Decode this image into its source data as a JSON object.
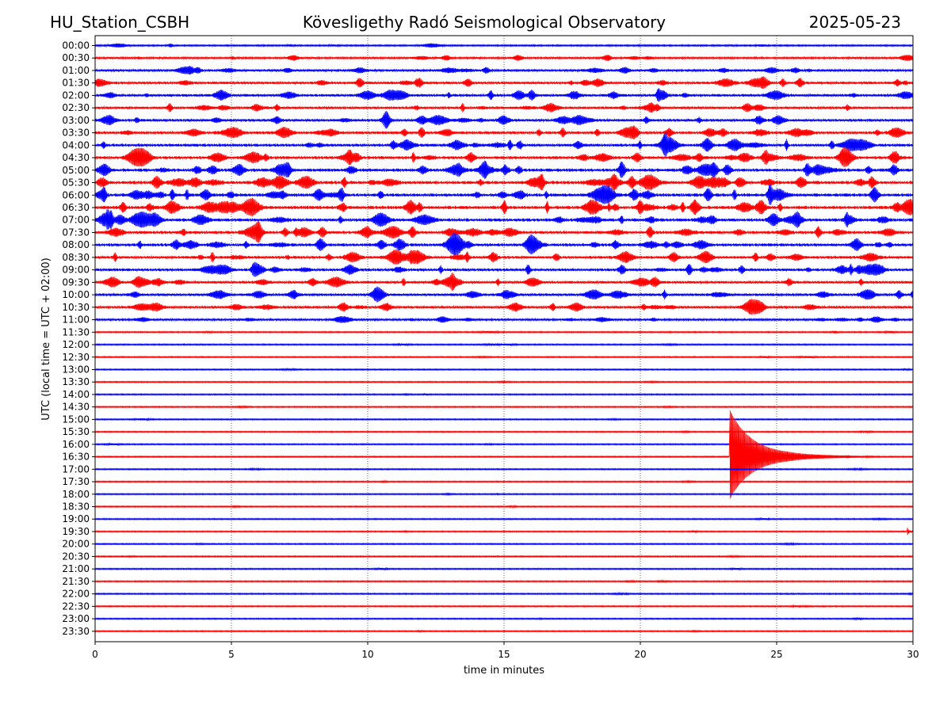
{
  "header": {
    "station": "HU_Station_CSBH",
    "title": "Kövesligethy Radó Seismological Observatory",
    "date": "2025-05-23"
  },
  "chart_data": {
    "type": "line",
    "title": "Kövesligethy Radó Seismological Observatory",
    "xlabel": "time in minutes",
    "ylabel": "UTC (local time = UTC + 02:00)",
    "xlim": [
      0,
      30
    ],
    "x_ticks": [
      0,
      5,
      10,
      15,
      20,
      25,
      30
    ],
    "grid": "vertical dotted at x ticks",
    "colors": [
      "#0000ff",
      "#ff0000"
    ],
    "rows": [
      "00:00",
      "00:30",
      "01:00",
      "01:30",
      "02:00",
      "02:30",
      "03:00",
      "03:30",
      "04:00",
      "04:30",
      "05:00",
      "05:30",
      "06:00",
      "06:30",
      "07:00",
      "07:30",
      "08:00",
      "08:30",
      "09:00",
      "09:30",
      "10:00",
      "10:30",
      "11:00",
      "11:30",
      "12:00",
      "12:30",
      "13:00",
      "13:30",
      "14:00",
      "14:30",
      "15:00",
      "15:30",
      "16:00",
      "16:30",
      "17:00",
      "17:30",
      "18:00",
      "18:30",
      "19:00",
      "19:30",
      "20:00",
      "20:30",
      "21:00",
      "21:30",
      "22:00",
      "22:30",
      "23:00",
      "23:30"
    ],
    "activity_level": [
      0.15,
      0.25,
      0.35,
      0.45,
      0.45,
      0.4,
      0.45,
      0.5,
      0.55,
      0.55,
      0.6,
      0.65,
      0.65,
      0.65,
      0.6,
      0.55,
      0.55,
      0.5,
      0.5,
      0.45,
      0.45,
      0.4,
      0.3,
      0.08,
      0.08,
      0.06,
      0.05,
      0.05,
      0.05,
      0.05,
      0.05,
      0.05,
      0.05,
      0.05,
      0.05,
      0.05,
      0.05,
      0.05,
      0.05,
      0.05,
      0.05,
      0.05,
      0.05,
      0.05,
      0.05,
      0.05,
      0.05,
      0.05
    ],
    "events": [
      {
        "row": "16:30",
        "minute": 23.3,
        "peak": 55,
        "coda_minutes": 5.5
      },
      {
        "row": "19:30",
        "minute": 29.8,
        "peak": 4,
        "coda_minutes": 0.3
      }
    ]
  }
}
